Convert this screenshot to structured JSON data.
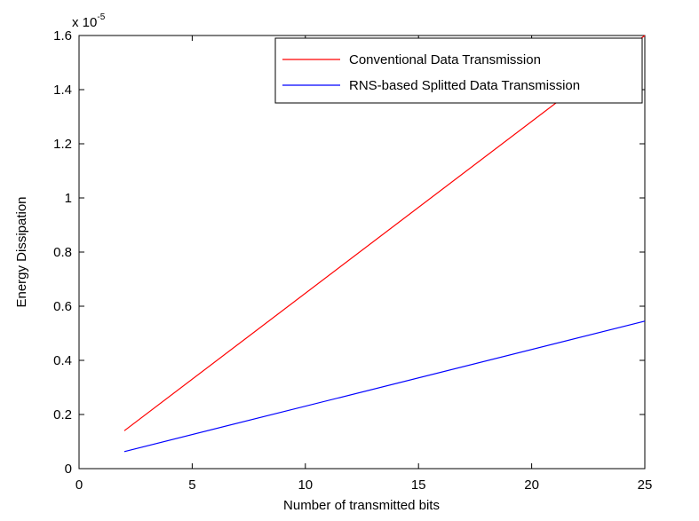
{
  "chart_data": {
    "type": "line",
    "title": "",
    "xlabel": "Number of transmitted bits",
    "ylabel": "Energy Dissipation",
    "y_multiplier_label": "x 10",
    "y_multiplier_exponent": "-5",
    "xlim": [
      0,
      25
    ],
    "ylim": [
      0,
      1.6
    ],
    "x_ticks": [
      0,
      5,
      10,
      15,
      20,
      25
    ],
    "x_tick_labels": [
      "0",
      "5",
      "10",
      "15",
      "20",
      "25"
    ],
    "y_ticks": [
      0,
      0.2,
      0.4,
      0.6,
      0.8,
      1.0,
      1.2,
      1.4,
      1.6
    ],
    "y_tick_labels": [
      "0",
      "0.2",
      "0.4",
      "0.6",
      "0.8",
      "1",
      "1.2",
      "1.4",
      "1.6"
    ],
    "grid": false,
    "legend_position": "top-right",
    "series": [
      {
        "name": "Conventional Data Transmission",
        "color": "#ff0000",
        "x": [
          2,
          25
        ],
        "y": [
          0.14,
          1.6
        ]
      },
      {
        "name": "RNS-based Splitted Data Transmission",
        "color": "#0000ff",
        "x": [
          2,
          25
        ],
        "y": [
          0.063,
          0.545
        ]
      }
    ]
  }
}
